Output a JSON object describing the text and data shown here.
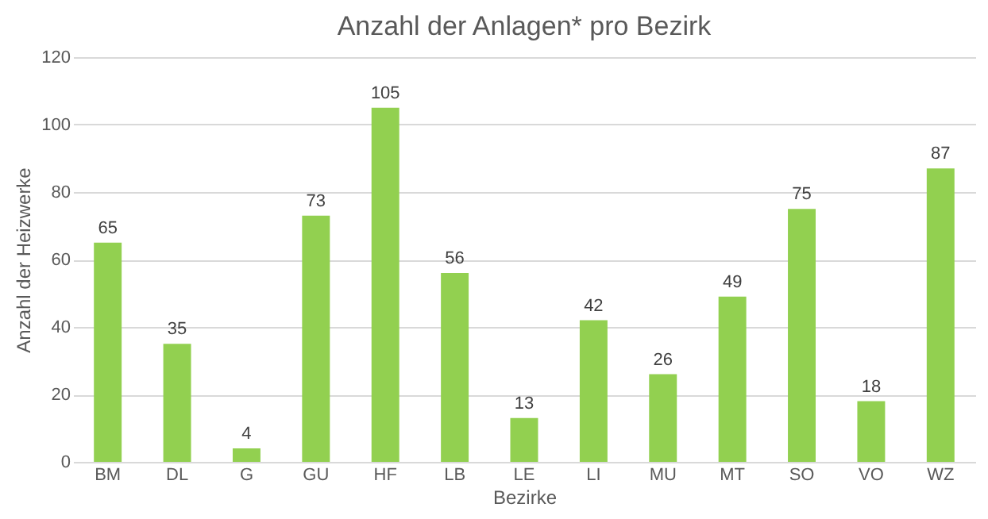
{
  "chart_data": {
    "type": "bar",
    "title": "Anzahl der Anlagen* pro Bezirk",
    "xlabel": "Bezirke",
    "ylabel": "Anzahl der Heizwerke",
    "categories": [
      "BM",
      "DL",
      "G",
      "GU",
      "HF",
      "LB",
      "LE",
      "LI",
      "MU",
      "MT",
      "SO",
      "VO",
      "WZ"
    ],
    "values": [
      65,
      35,
      4,
      73,
      105,
      56,
      13,
      42,
      26,
      49,
      75,
      18,
      87
    ],
    "color": "#92d050",
    "ylim": [
      0,
      120
    ],
    "yticks": [
      0,
      20,
      40,
      60,
      80,
      100,
      120
    ],
    "grid": "y",
    "data_labels": true
  }
}
